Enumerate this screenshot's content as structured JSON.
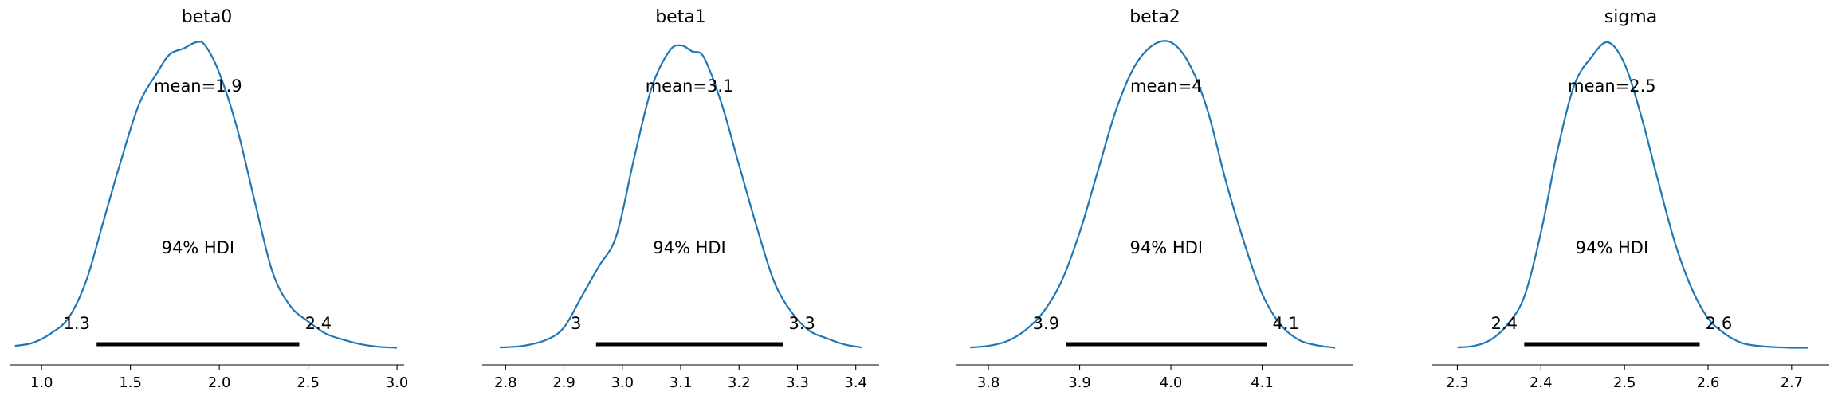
{
  "chart_data": [
    {
      "type": "area",
      "title": "beta0",
      "mean_label": "mean=1.9",
      "hdi_label": "94% HDI",
      "hdi": [
        1.31,
        2.45
      ],
      "hdi_low_label": "1.3",
      "hdi_high_label": "2.4",
      "xlim": [
        0.82,
        3.04
      ],
      "ticks": [
        1.0,
        1.5,
        2.0,
        2.5,
        3.0
      ],
      "tick_labels": [
        "1.0",
        "1.5",
        "2.0",
        "2.5",
        "3.0"
      ],
      "density": {
        "x": [
          0.85,
          0.95,
          1.05,
          1.15,
          1.25,
          1.35,
          1.45,
          1.55,
          1.65,
          1.72,
          1.8,
          1.87,
          1.92,
          2.0,
          2.1,
          2.2,
          2.3,
          2.4,
          2.5,
          2.6,
          2.7,
          2.8,
          2.9,
          3.0
        ],
        "y": [
          0.01,
          0.02,
          0.05,
          0.1,
          0.22,
          0.42,
          0.62,
          0.8,
          0.9,
          0.96,
          0.98,
          1.0,
          0.99,
          0.9,
          0.72,
          0.48,
          0.25,
          0.14,
          0.09,
          0.05,
          0.03,
          0.015,
          0.007,
          0.004
        ]
      }
    },
    {
      "type": "area",
      "title": "beta1",
      "mean_label": "mean=3.1",
      "hdi_label": "94% HDI",
      "hdi": [
        2.955,
        3.275
      ],
      "hdi_low_label": "3",
      "hdi_high_label": "3.3",
      "xlim": [
        2.76,
        3.44
      ],
      "ticks": [
        2.8,
        2.9,
        3.0,
        3.1,
        3.2,
        3.3,
        3.4
      ],
      "tick_labels": [
        "2.8",
        "2.9",
        "3.0",
        "3.1",
        "3.2",
        "3.3",
        "3.4"
      ],
      "density": {
        "x": [
          2.79,
          2.83,
          2.87,
          2.9,
          2.93,
          2.96,
          2.99,
          3.02,
          3.05,
          3.08,
          3.1,
          3.12,
          3.14,
          3.17,
          3.2,
          3.23,
          3.26,
          3.29,
          3.32,
          3.35,
          3.38,
          3.41
        ],
        "y": [
          0.005,
          0.01,
          0.03,
          0.07,
          0.17,
          0.27,
          0.37,
          0.62,
          0.85,
          0.97,
          0.99,
          0.97,
          0.95,
          0.8,
          0.6,
          0.4,
          0.22,
          0.12,
          0.06,
          0.035,
          0.015,
          0.005
        ]
      }
    },
    {
      "type": "area",
      "title": "beta2",
      "mean_label": "mean=4",
      "hdi_label": "94% HDI",
      "hdi": [
        3.885,
        4.105
      ],
      "hdi_low_label": "3.9",
      "hdi_high_label": "4.1",
      "xlim": [
        3.765,
        4.2
      ],
      "ticks": [
        3.8,
        3.9,
        4.0,
        4.1
      ],
      "tick_labels": [
        "3.8",
        "3.9",
        "4.0",
        "4.1"
      ],
      "density": {
        "x": [
          3.78,
          3.8,
          3.82,
          3.84,
          3.86,
          3.88,
          3.9,
          3.92,
          3.94,
          3.96,
          3.98,
          4.0,
          4.02,
          4.04,
          4.06,
          4.08,
          4.1,
          4.12,
          4.14,
          4.16,
          4.18
        ],
        "y": [
          0.005,
          0.01,
          0.025,
          0.06,
          0.12,
          0.22,
          0.38,
          0.58,
          0.78,
          0.92,
          0.99,
          1.0,
          0.93,
          0.78,
          0.55,
          0.35,
          0.18,
          0.08,
          0.03,
          0.012,
          0.004
        ]
      }
    },
    {
      "type": "area",
      "title": "sigma",
      "mean_label": "mean=2.5",
      "hdi_label": "94% HDI",
      "hdi": [
        2.38,
        2.59
      ],
      "hdi_low_label": "2.4",
      "hdi_high_label": "2.6",
      "xlim": [
        2.27,
        2.745
      ],
      "ticks": [
        2.3,
        2.4,
        2.5,
        2.6,
        2.7
      ],
      "tick_labels": [
        "2.3",
        "2.4",
        "2.5",
        "2.6",
        "2.7"
      ],
      "density": {
        "x": [
          2.3,
          2.32,
          2.34,
          2.36,
          2.38,
          2.4,
          2.42,
          2.44,
          2.46,
          2.48,
          2.5,
          2.52,
          2.54,
          2.56,
          2.58,
          2.6,
          2.62,
          2.64,
          2.66,
          2.68,
          2.7,
          2.72
        ],
        "y": [
          0.005,
          0.01,
          0.03,
          0.08,
          0.17,
          0.38,
          0.65,
          0.86,
          0.95,
          1.0,
          0.93,
          0.76,
          0.55,
          0.35,
          0.2,
          0.1,
          0.05,
          0.02,
          0.01,
          0.006,
          0.004,
          0.004
        ]
      }
    }
  ]
}
